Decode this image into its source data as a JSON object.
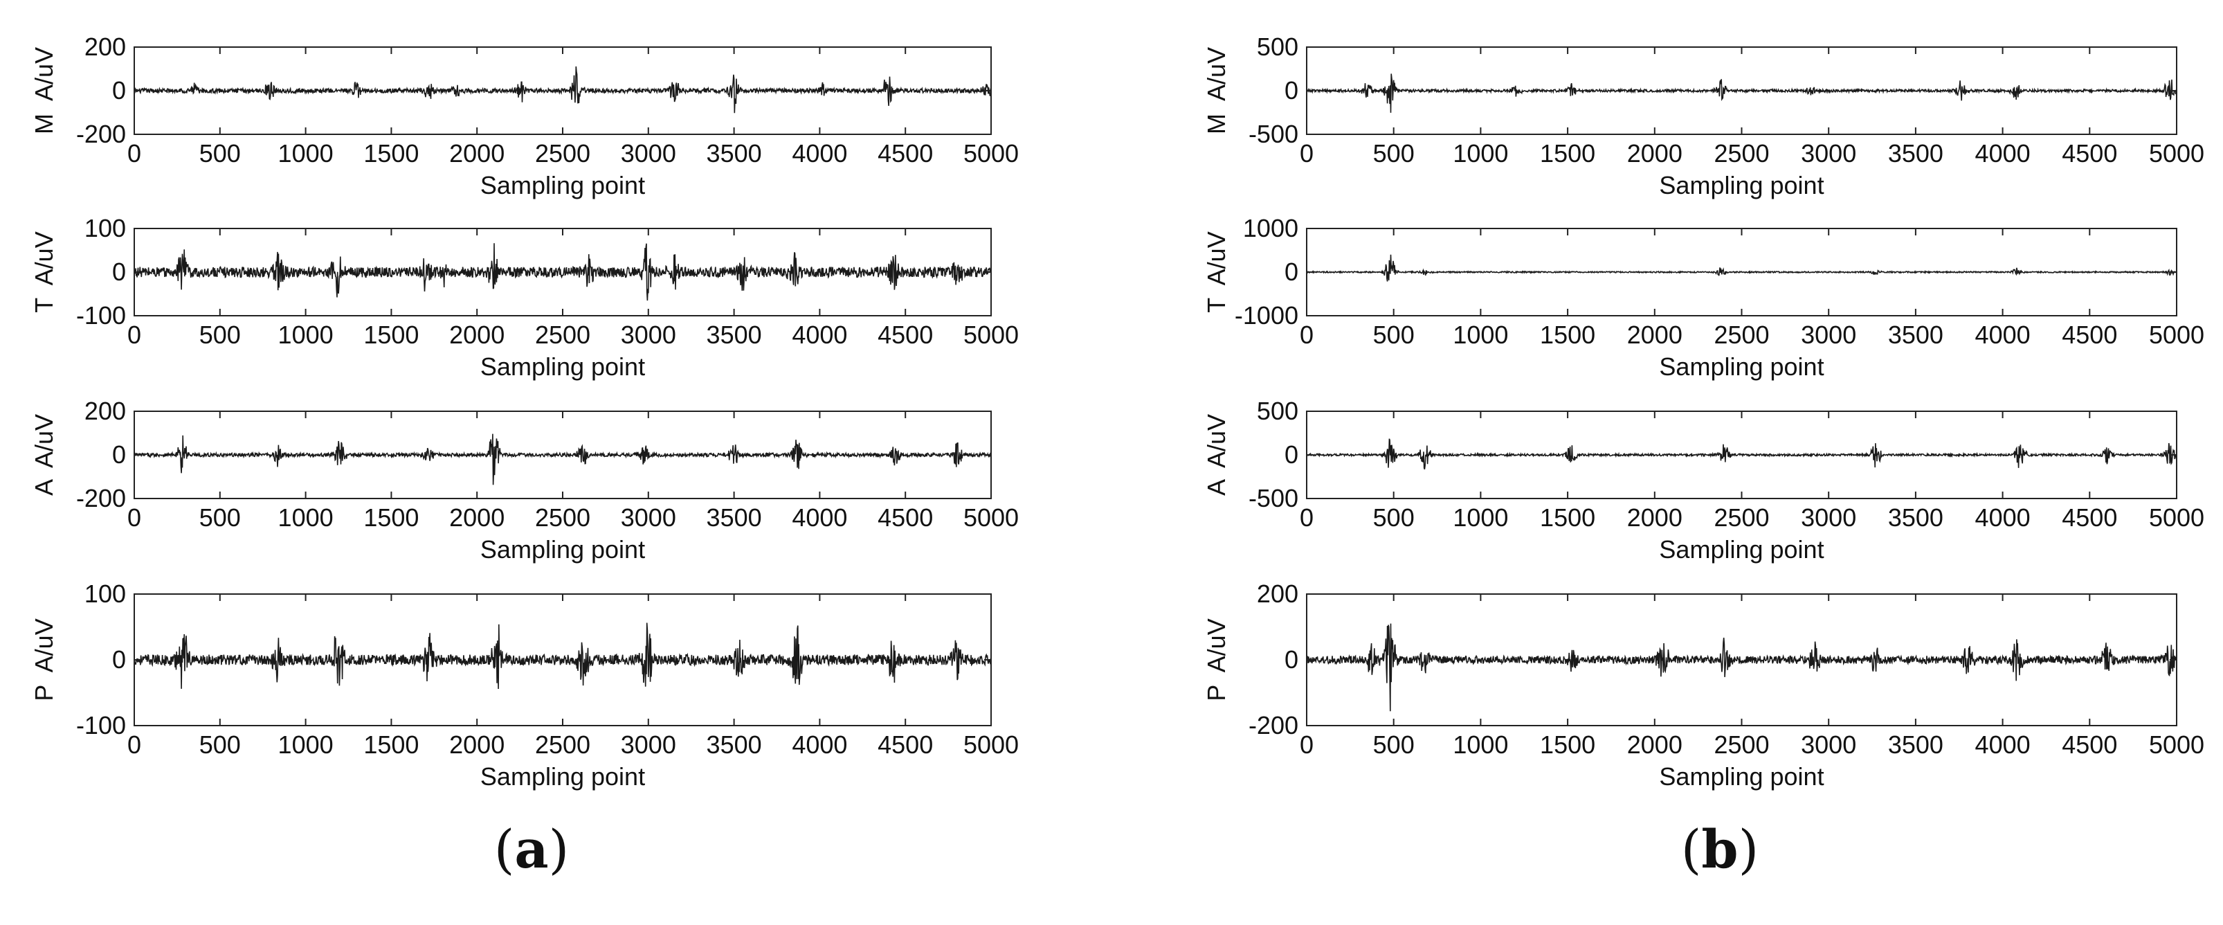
{
  "chart_data": [
    {
      "panel_label": "(a)",
      "panel_letter": "a",
      "type": "line",
      "subplots": [
        {
          "ylabel": "M  A/uV",
          "xlabel": "Sampling point",
          "xlim": [
            0,
            5000
          ],
          "ylim": [
            -200,
            200
          ],
          "yticks": [
            -200,
            0,
            200
          ],
          "xticks": [
            0,
            500,
            1000,
            1500,
            2000,
            2500,
            3000,
            3500,
            4000,
            4500,
            5000
          ],
          "noise_amplitude": 10,
          "bursts": [
            [
              350,
              30
            ],
            [
              790,
              -50
            ],
            [
              1300,
              45
            ],
            [
              1720,
              -45
            ],
            [
              1880,
              35
            ],
            [
              2260,
              -55
            ],
            [
              2580,
              110
            ],
            [
              3150,
              70
            ],
            [
              3500,
              95
            ],
            [
              4020,
              -40
            ],
            [
              4400,
              95
            ],
            [
              4980,
              40
            ]
          ]
        },
        {
          "ylabel": "T  A/uV",
          "xlabel": "Sampling point",
          "xlim": [
            0,
            5000
          ],
          "ylim": [
            -100,
            100
          ],
          "yticks": [
            -100,
            0,
            100
          ],
          "xticks": [
            0,
            500,
            1000,
            1500,
            2000,
            2500,
            3000,
            3500,
            4000,
            4500,
            5000
          ],
          "noise_amplitude": 12,
          "bursts": [
            [
              280,
              65
            ],
            [
              840,
              50
            ],
            [
              1180,
              -65
            ],
            [
              1700,
              40
            ],
            [
              1800,
              40
            ],
            [
              2100,
              60
            ],
            [
              2650,
              45
            ],
            [
              2990,
              75
            ],
            [
              3150,
              50
            ],
            [
              3550,
              40
            ],
            [
              3850,
              55
            ],
            [
              4430,
              55
            ],
            [
              4800,
              40
            ]
          ]
        },
        {
          "ylabel": "A  A/uV",
          "xlabel": "Sampling point",
          "xlim": [
            0,
            5000
          ],
          "ylim": [
            -200,
            200
          ],
          "yticks": [
            -200,
            0,
            200
          ],
          "xticks": [
            0,
            500,
            1000,
            1500,
            2000,
            2500,
            3000,
            3500,
            4000,
            4500,
            5000
          ],
          "noise_amplitude": 8,
          "bursts": [
            [
              280,
              90
            ],
            [
              840,
              55
            ],
            [
              1200,
              85
            ],
            [
              1720,
              -55
            ],
            [
              2100,
              -140
            ],
            [
              2620,
              70
            ],
            [
              2980,
              60
            ],
            [
              3500,
              65
            ],
            [
              3870,
              90
            ],
            [
              4440,
              55
            ],
            [
              4800,
              60
            ]
          ]
        },
        {
          "ylabel": "P  A/uV",
          "xlabel": "Sampling point",
          "xlim": [
            0,
            5000
          ],
          "ylim": [
            -100,
            100
          ],
          "yticks": [
            -100,
            0,
            100
          ],
          "xticks": [
            0,
            500,
            1000,
            1500,
            2000,
            2500,
            3000,
            3500,
            4000,
            4500,
            5000
          ],
          "noise_amplitude": 8,
          "bursts": [
            [
              280,
              -75
            ],
            [
              840,
              40
            ],
            [
              1190,
              70
            ],
            [
              1720,
              50
            ],
            [
              2120,
              -60
            ],
            [
              2620,
              45
            ],
            [
              2990,
              -65
            ],
            [
              3530,
              35
            ],
            [
              3870,
              60
            ],
            [
              4430,
              40
            ],
            [
              4800,
              35
            ]
          ]
        }
      ]
    },
    {
      "panel_label": "(b)",
      "panel_letter": "b",
      "type": "line",
      "subplots": [
        {
          "ylabel": "M  A/uV",
          "xlabel": "Sampling point",
          "xlim": [
            0,
            5000
          ],
          "ylim": [
            -500,
            500
          ],
          "yticks": [
            -500,
            0,
            500
          ],
          "xticks": [
            0,
            500,
            1000,
            1500,
            2000,
            2500,
            3000,
            3500,
            4000,
            4500,
            5000
          ],
          "noise_amplitude": 15,
          "bursts": [
            [
              350,
              130
            ],
            [
              480,
              280
            ],
            [
              1200,
              70
            ],
            [
              1520,
              90
            ],
            [
              2380,
              150
            ],
            [
              2900,
              60
            ],
            [
              3760,
              120
            ],
            [
              4080,
              110
            ],
            [
              4960,
              160
            ]
          ]
        },
        {
          "ylabel": "T  A/uV",
          "xlabel": "Sampling point",
          "xlim": [
            0,
            5000
          ],
          "ylim": [
            -1000,
            1000
          ],
          "yticks": [
            -1000,
            0,
            1000
          ],
          "xticks": [
            0,
            500,
            1000,
            1500,
            2000,
            2500,
            3000,
            3500,
            4000,
            4500,
            5000
          ],
          "noise_amplitude": 15,
          "bursts": [
            [
              480,
              -450
            ],
            [
              680,
              80
            ],
            [
              2380,
              120
            ],
            [
              3270,
              70
            ],
            [
              4080,
              100
            ],
            [
              4960,
              80
            ]
          ]
        },
        {
          "ylabel": "A  A/uV",
          "xlabel": "Sampling point",
          "xlim": [
            0,
            5000
          ],
          "ylim": [
            -500,
            500
          ],
          "yticks": [
            -500,
            0,
            500
          ],
          "xticks": [
            0,
            500,
            1000,
            1500,
            2000,
            2500,
            3000,
            3500,
            4000,
            4500,
            5000
          ],
          "noise_amplitude": 12,
          "bursts": [
            [
              480,
              220
            ],
            [
              680,
              180
            ],
            [
              1520,
              -140
            ],
            [
              2400,
              130
            ],
            [
              3270,
              -160
            ],
            [
              4100,
              200
            ],
            [
              4600,
              110
            ],
            [
              4960,
              140
            ]
          ]
        },
        {
          "ylabel": "P  A/uV",
          "xlabel": "Sampling point",
          "xlim": [
            0,
            5000
          ],
          "ylim": [
            -200,
            200
          ],
          "yticks": [
            -200,
            0,
            200
          ],
          "xticks": [
            0,
            500,
            1000,
            1500,
            2000,
            2500,
            3000,
            3500,
            4000,
            4500,
            5000
          ],
          "noise_amplitude": 12,
          "bursts": [
            [
              380,
              80
            ],
            [
              480,
              165
            ],
            [
              680,
              60
            ],
            [
              1530,
              50
            ],
            [
              2050,
              75
            ],
            [
              2400,
              60
            ],
            [
              2920,
              50
            ],
            [
              3270,
              50
            ],
            [
              3800,
              50
            ],
            [
              4080,
              85
            ],
            [
              4600,
              55
            ],
            [
              4960,
              65
            ]
          ]
        }
      ]
    }
  ]
}
